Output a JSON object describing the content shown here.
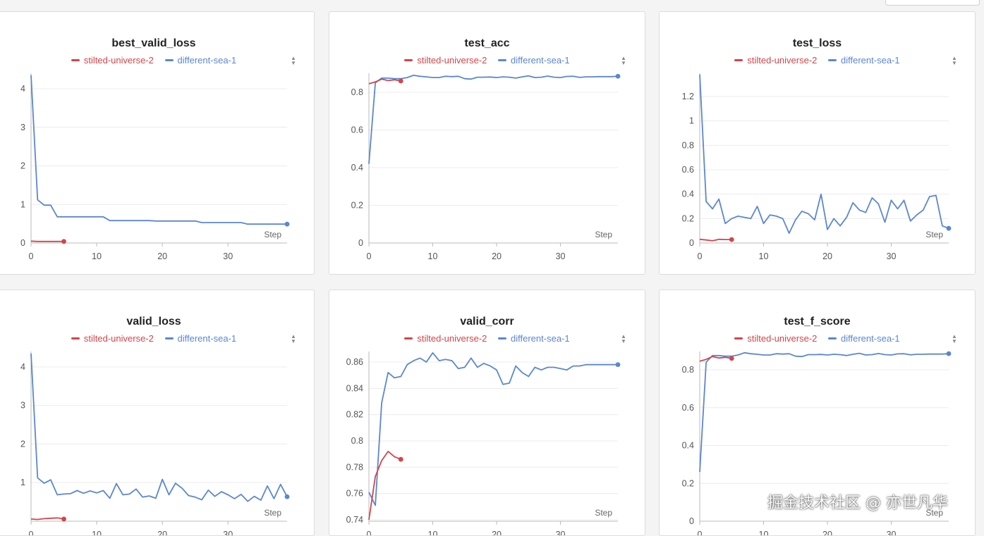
{
  "legend": {
    "run_a": "stilted-universe-2",
    "run_b": "different-sea-1"
  },
  "colors": {
    "run_a": "#d2454a",
    "run_b": "#5b87d0"
  },
  "x_axis_label": "Step",
  "watermark": "掘金技术社区 @ 亦世凡华",
  "chart_data": [
    {
      "type": "line",
      "title": "best_valid_loss",
      "xlabel": "Step",
      "xlim": [
        0,
        39
      ],
      "ylim": [
        0,
        4.4
      ],
      "xticks": [
        0,
        10,
        20,
        30
      ],
      "yticks": [
        0,
        1,
        2,
        3,
        4
      ],
      "ytick_labels": [
        "0",
        "1",
        "2",
        "3",
        "4"
      ],
      "series": [
        {
          "name": "stilted-universe-2",
          "x": [
            0,
            1,
            2,
            3,
            4,
            5
          ],
          "y": [
            0.05,
            0.04,
            0.04,
            0.04,
            0.04,
            0.04
          ]
        },
        {
          "name": "different-sea-1",
          "x": [
            0,
            1,
            2,
            3,
            4,
            5,
            6,
            7,
            8,
            9,
            10,
            11,
            12,
            13,
            14,
            15,
            16,
            17,
            18,
            19,
            20,
            21,
            22,
            23,
            24,
            25,
            26,
            27,
            28,
            29,
            30,
            31,
            32,
            33,
            34,
            35,
            36,
            37,
            38,
            39
          ],
          "y": [
            4.35,
            1.12,
            0.98,
            0.98,
            0.68,
            0.68,
            0.68,
            0.68,
            0.68,
            0.68,
            0.68,
            0.68,
            0.58,
            0.58,
            0.58,
            0.58,
            0.58,
            0.58,
            0.58,
            0.57,
            0.57,
            0.57,
            0.57,
            0.57,
            0.57,
            0.57,
            0.53,
            0.53,
            0.53,
            0.53,
            0.53,
            0.53,
            0.53,
            0.49,
            0.49,
            0.49,
            0.49,
            0.49,
            0.49,
            0.49
          ]
        }
      ]
    },
    {
      "type": "line",
      "title": "test_acc",
      "xlabel": "Step",
      "xlim": [
        0,
        39
      ],
      "ylim": [
        0,
        0.9
      ],
      "xticks": [
        0,
        10,
        20,
        30
      ],
      "yticks": [
        0,
        0.2,
        0.4,
        0.6,
        0.8
      ],
      "ytick_labels": [
        "0",
        "0.2",
        "0.4",
        "0.6",
        "0.8"
      ],
      "series": [
        {
          "name": "stilted-universe-2",
          "x": [
            0,
            1,
            2,
            3,
            4,
            5
          ],
          "y": [
            0.845,
            0.855,
            0.87,
            0.862,
            0.866,
            0.86
          ]
        },
        {
          "name": "different-sea-1",
          "x": [
            0,
            1,
            2,
            3,
            4,
            5,
            6,
            7,
            8,
            9,
            10,
            11,
            12,
            13,
            14,
            15,
            16,
            17,
            18,
            19,
            20,
            21,
            22,
            23,
            24,
            25,
            26,
            27,
            28,
            29,
            30,
            31,
            32,
            33,
            34,
            35,
            36,
            37,
            38,
            39
          ],
          "y": [
            0.42,
            0.85,
            0.875,
            0.875,
            0.872,
            0.872,
            0.878,
            0.89,
            0.885,
            0.882,
            0.878,
            0.878,
            0.885,
            0.883,
            0.885,
            0.872,
            0.87,
            0.88,
            0.88,
            0.881,
            0.878,
            0.882,
            0.88,
            0.875,
            0.882,
            0.887,
            0.878,
            0.88,
            0.886,
            0.88,
            0.878,
            0.884,
            0.885,
            0.879,
            0.882,
            0.882,
            0.883,
            0.883,
            0.883,
            0.885
          ]
        }
      ]
    },
    {
      "type": "line",
      "title": "test_loss",
      "xlabel": "Step",
      "xlim": [
        0,
        39
      ],
      "ylim": [
        0,
        1.4
      ],
      "xticks": [
        0,
        10,
        20,
        30
      ],
      "yticks": [
        0,
        0.2,
        0.4,
        0.6,
        0.8,
        1,
        1.2
      ],
      "ytick_labels": [
        "0",
        "0.2",
        "0.4",
        "0.6",
        "0.8",
        "1",
        "1.2"
      ],
      "series": [
        {
          "name": "stilted-universe-2",
          "x": [
            0,
            1,
            2,
            3,
            4,
            5
          ],
          "y": [
            0.03,
            0.025,
            0.018,
            0.03,
            0.028,
            0.028
          ]
        },
        {
          "name": "different-sea-1",
          "x": [
            0,
            1,
            2,
            3,
            4,
            5,
            6,
            7,
            8,
            9,
            10,
            11,
            12,
            13,
            14,
            15,
            16,
            17,
            18,
            19,
            20,
            21,
            22,
            23,
            24,
            25,
            26,
            27,
            28,
            29,
            30,
            31,
            32,
            33,
            34,
            35,
            36,
            37,
            38,
            39
          ],
          "y": [
            1.38,
            0.34,
            0.28,
            0.36,
            0.16,
            0.2,
            0.22,
            0.21,
            0.2,
            0.3,
            0.16,
            0.23,
            0.22,
            0.2,
            0.08,
            0.19,
            0.26,
            0.24,
            0.19,
            0.4,
            0.11,
            0.2,
            0.14,
            0.21,
            0.33,
            0.27,
            0.25,
            0.37,
            0.32,
            0.17,
            0.35,
            0.28,
            0.35,
            0.18,
            0.23,
            0.27,
            0.38,
            0.39,
            0.14,
            0.12
          ]
        }
      ]
    },
    {
      "type": "line",
      "title": "valid_loss",
      "xlabel": "Step",
      "xlim": [
        0,
        39
      ],
      "ylim": [
        0,
        4.4
      ],
      "xticks": [
        0,
        10,
        20,
        30
      ],
      "yticks": [
        1,
        2,
        3,
        4
      ],
      "ytick_labels": [
        "1",
        "2",
        "3",
        "4"
      ],
      "series": [
        {
          "name": "stilted-universe-2",
          "x": [
            0,
            1,
            2,
            3,
            4,
            5
          ],
          "y": [
            0.05,
            0.04,
            0.06,
            0.07,
            0.08,
            0.05
          ]
        },
        {
          "name": "different-sea-1",
          "x": [
            0,
            1,
            2,
            3,
            4,
            5,
            6,
            7,
            8,
            9,
            10,
            11,
            12,
            13,
            14,
            15,
            16,
            17,
            18,
            19,
            20,
            21,
            22,
            23,
            24,
            25,
            26,
            27,
            28,
            29,
            30,
            31,
            32,
            33,
            34,
            35,
            36,
            37,
            38,
            39
          ],
          "y": [
            4.35,
            1.12,
            0.98,
            1.07,
            0.68,
            0.7,
            0.71,
            0.79,
            0.72,
            0.78,
            0.73,
            0.79,
            0.59,
            0.97,
            0.68,
            0.7,
            0.83,
            0.62,
            0.65,
            0.59,
            1.08,
            0.68,
            0.98,
            0.85,
            0.66,
            0.62,
            0.55,
            0.8,
            0.64,
            0.76,
            0.68,
            0.58,
            0.69,
            0.51,
            0.64,
            0.54,
            0.91,
            0.58,
            0.95,
            0.63
          ]
        }
      ]
    },
    {
      "type": "line",
      "title": "valid_corr",
      "xlabel": "Step",
      "xlim": [
        0,
        39
      ],
      "ylim": [
        0.74,
        0.868
      ],
      "xticks": [
        0,
        10,
        20,
        30
      ],
      "yticks": [
        0.74,
        0.76,
        0.78,
        0.8,
        0.82,
        0.84,
        0.86
      ],
      "ytick_labels": [
        "0.74",
        "0.76",
        "0.78",
        "0.8",
        "0.82",
        "0.84",
        "0.86"
      ],
      "series": [
        {
          "name": "stilted-universe-2",
          "x": [
            0,
            1,
            2,
            3,
            4,
            5
          ],
          "y": [
            0.74,
            0.773,
            0.785,
            0.792,
            0.788,
            0.786
          ]
        },
        {
          "name": "different-sea-1",
          "x": [
            0,
            1,
            2,
            3,
            4,
            5,
            6,
            7,
            8,
            9,
            10,
            11,
            12,
            13,
            14,
            15,
            16,
            17,
            18,
            19,
            20,
            21,
            22,
            23,
            24,
            25,
            26,
            27,
            28,
            29,
            30,
            31,
            32,
            33,
            34,
            35,
            36,
            37,
            38,
            39
          ],
          "y": [
            0.761,
            0.751,
            0.829,
            0.852,
            0.848,
            0.849,
            0.858,
            0.861,
            0.863,
            0.86,
            0.867,
            0.861,
            0.862,
            0.861,
            0.855,
            0.856,
            0.863,
            0.856,
            0.859,
            0.857,
            0.854,
            0.843,
            0.844,
            0.857,
            0.852,
            0.849,
            0.856,
            0.854,
            0.856,
            0.856,
            0.855,
            0.854,
            0.857,
            0.857,
            0.858,
            0.858,
            0.858,
            0.858,
            0.858,
            0.858
          ]
        }
      ]
    },
    {
      "type": "line",
      "title": "test_f_score",
      "xlabel": "Step",
      "xlim": [
        0,
        39
      ],
      "ylim": [
        0,
        0.9
      ],
      "xticks": [
        0,
        10,
        20,
        30
      ],
      "yticks": [
        0,
        0.2,
        0.4,
        0.6,
        0.8
      ],
      "ytick_labels": [
        "0",
        "0.2",
        "0.4",
        "0.6",
        "0.8"
      ],
      "series": [
        {
          "name": "stilted-universe-2",
          "x": [
            0,
            1,
            2,
            3,
            4,
            5
          ],
          "y": [
            0.845,
            0.855,
            0.87,
            0.862,
            0.866,
            0.86
          ]
        },
        {
          "name": "different-sea-1",
          "x": [
            0,
            1,
            2,
            3,
            4,
            5,
            6,
            7,
            8,
            9,
            10,
            11,
            12,
            13,
            14,
            15,
            16,
            17,
            18,
            19,
            20,
            21,
            22,
            23,
            24,
            25,
            26,
            27,
            28,
            29,
            30,
            31,
            32,
            33,
            34,
            35,
            36,
            37,
            38,
            39
          ],
          "y": [
            0.26,
            0.84,
            0.875,
            0.875,
            0.872,
            0.872,
            0.878,
            0.89,
            0.885,
            0.882,
            0.878,
            0.878,
            0.885,
            0.883,
            0.885,
            0.872,
            0.87,
            0.88,
            0.88,
            0.881,
            0.878,
            0.882,
            0.88,
            0.875,
            0.882,
            0.887,
            0.878,
            0.88,
            0.886,
            0.88,
            0.878,
            0.884,
            0.885,
            0.879,
            0.882,
            0.882,
            0.883,
            0.883,
            0.883,
            0.885
          ]
        }
      ]
    }
  ]
}
